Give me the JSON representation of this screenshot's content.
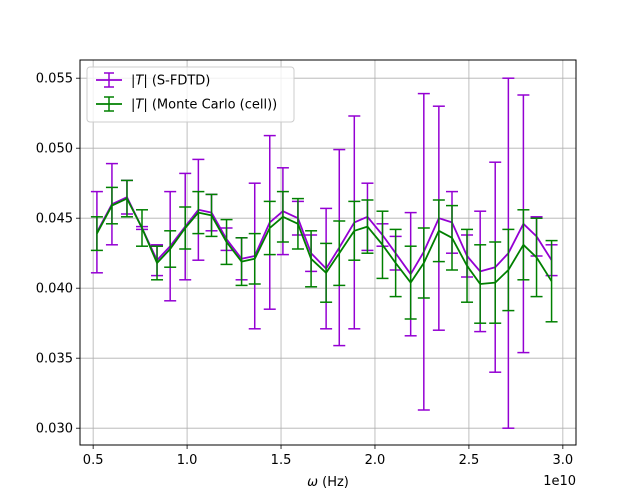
{
  "chart_data": {
    "type": "line",
    "title": "",
    "xlabel_prefix": "ω",
    "xlabel_suffix": " (Hz)",
    "ylabel": "",
    "x_offset_text": "1e10",
    "xlim": [
      0.43,
      3.07
    ],
    "ylim": [
      0.0288,
      0.0563
    ],
    "xticks": [
      0.5,
      1.0,
      1.5,
      2.0,
      2.5,
      3.0
    ],
    "xtick_labels": [
      "0.5",
      "1.0",
      "1.5",
      "2.0",
      "2.5",
      "3.0"
    ],
    "yticks": [
      0.03,
      0.035,
      0.04,
      0.045,
      0.05,
      0.055
    ],
    "ytick_labels": [
      "0.030",
      "0.035",
      "0.040",
      "0.045",
      "0.050",
      "0.055"
    ],
    "grid": true,
    "legend_position": "top-left",
    "x": [
      0.52,
      0.6,
      0.68,
      0.76,
      0.84,
      0.91,
      0.99,
      1.06,
      1.13,
      1.21,
      1.29,
      1.36,
      1.44,
      1.51,
      1.59,
      1.66,
      1.74,
      1.81,
      1.89,
      1.96,
      2.04,
      2.11,
      2.19,
      2.26,
      2.34,
      2.41,
      2.49,
      2.56,
      2.64,
      2.71,
      2.79,
      2.86,
      2.94
    ],
    "series": [
      {
        "name_prefix": "|",
        "name_italic": "T",
        "name_suffix": "| (S-FDTD)",
        "color": "#9400d3",
        "values": [
          0.044,
          0.046,
          0.0465,
          0.0443,
          0.042,
          0.043,
          0.0444,
          0.0456,
          0.0454,
          0.0435,
          0.0421,
          0.0423,
          0.0447,
          0.0455,
          0.045,
          0.0425,
          0.0414,
          0.0429,
          0.0447,
          0.0451,
          0.0438,
          0.0425,
          0.041,
          0.0426,
          0.045,
          0.0447,
          0.0423,
          0.0412,
          0.0415,
          0.0425,
          0.0446,
          0.0437,
          0.042
        ],
        "err": [
          0.0029,
          0.0029,
          0.0012,
          0.0001,
          0.0011,
          0.0039,
          0.0038,
          0.0036,
          0.0013,
          0.0008,
          0.0015,
          0.0052,
          0.0062,
          0.0031,
          0.0012,
          0.0013,
          0.0043,
          0.007,
          0.0076,
          0.0024,
          0.0008,
          0.0012,
          0.0044,
          0.0113,
          0.008,
          0.0022,
          0.0015,
          0.0043,
          0.0075,
          0.0125,
          0.0092,
          0.0014,
          0.0011
        ]
      },
      {
        "name_prefix": "|",
        "name_italic": "T",
        "name_suffix": "| (Monte Carlo (cell))",
        "color": "#008000",
        "values": [
          0.0439,
          0.0459,
          0.0464,
          0.0443,
          0.0418,
          0.0428,
          0.0443,
          0.0454,
          0.0452,
          0.0433,
          0.0419,
          0.0421,
          0.0443,
          0.0451,
          0.0446,
          0.0421,
          0.0411,
          0.0425,
          0.0441,
          0.0444,
          0.0431,
          0.0418,
          0.0404,
          0.0418,
          0.0441,
          0.0436,
          0.0416,
          0.0403,
          0.0404,
          0.0413,
          0.0431,
          0.0422,
          0.0405
        ]
      }
    ],
    "green_err": [
      0.0012,
      0.0013,
      0.0013,
      0.0013,
      0.0012,
      0.0013,
      0.0015,
      0.0015,
      0.0015,
      0.0016,
      0.0017,
      0.0018,
      0.0019,
      0.0018,
      0.0018,
      0.002,
      0.0021,
      0.0023,
      0.0021,
      0.0019,
      0.0024,
      0.0024,
      0.0026,
      0.0025,
      0.0022,
      0.0023,
      0.0026,
      0.0028,
      0.0029,
      0.0029,
      0.0025,
      0.0028,
      0.0029
    ]
  }
}
